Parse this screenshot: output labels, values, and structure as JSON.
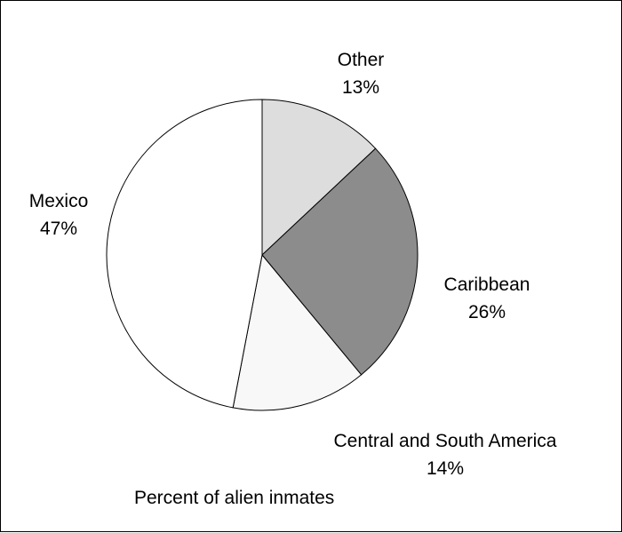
{
  "chart_data": {
    "type": "pie",
    "title": "",
    "caption": "Percent of alien inmates",
    "start_angle_deg": 0,
    "direction": "clockwise",
    "slices": [
      {
        "label": "Other",
        "value": 13,
        "value_text": "13%",
        "color": "#dddddd"
      },
      {
        "label": "Caribbean",
        "value": 26,
        "value_text": "26%",
        "color": "#8c8c8c"
      },
      {
        "label": "Central and South America",
        "value": 14,
        "value_text": "14%",
        "color": "#f8f8f8"
      },
      {
        "label": "Mexico",
        "value": 47,
        "value_text": "47%",
        "color": "#ffffff"
      }
    ]
  }
}
